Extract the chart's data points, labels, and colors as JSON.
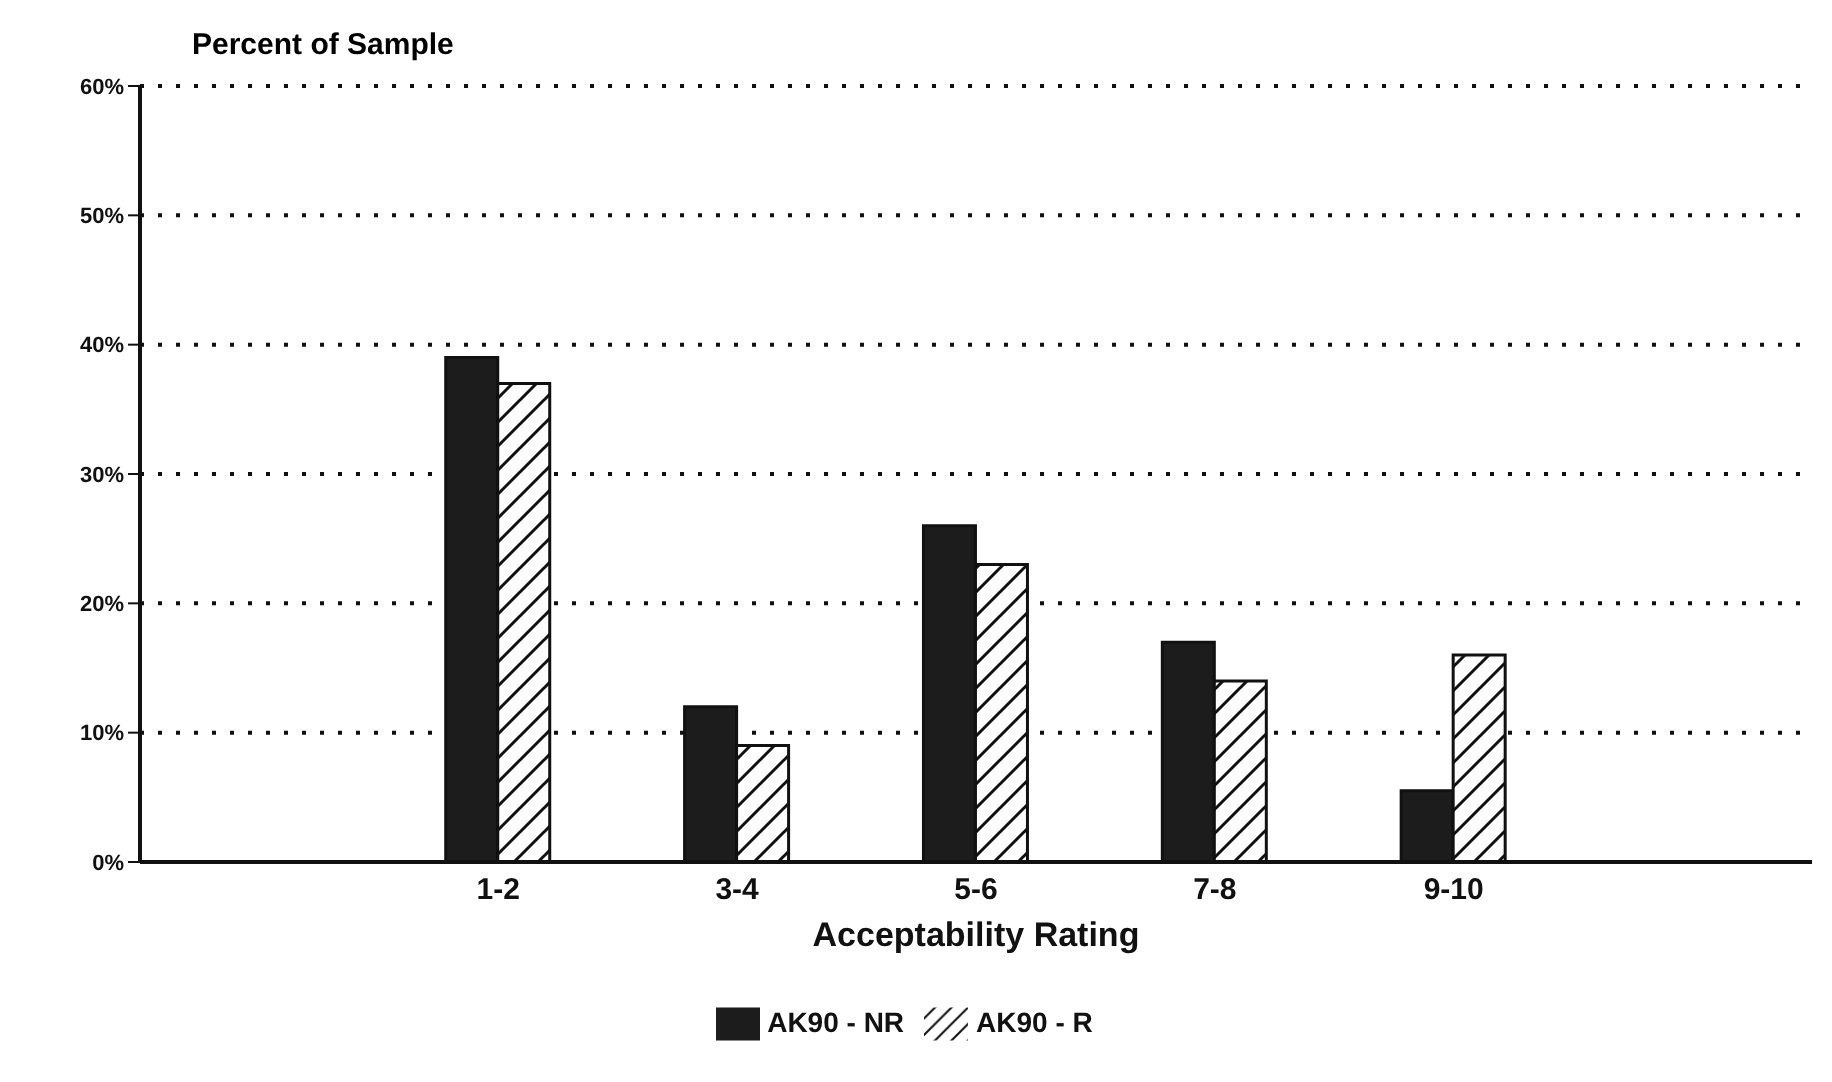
{
  "chart_data": {
    "type": "bar",
    "title": "Percent of Sample",
    "xlabel": "Acceptability Rating",
    "categories": [
      null,
      "1-2",
      "3-4",
      "5-6",
      "7-8",
      "9-10",
      null
    ],
    "series": [
      {
        "name": "AK90 - NR",
        "color": "#1c1c1c",
        "values": [
          0,
          39,
          12,
          26,
          17,
          5.5,
          0
        ]
      },
      {
        "name": "AK90 - R",
        "color": "#111111",
        "values": [
          0,
          37,
          9,
          23,
          14,
          16,
          0
        ]
      }
    ],
    "ylim": [
      0,
      60
    ],
    "yticks": [
      {
        "value": 0,
        "label": "0%"
      },
      {
        "value": 10,
        "label": "10%"
      },
      {
        "value": 20,
        "label": "20%"
      },
      {
        "value": 30,
        "label": "30%"
      },
      {
        "value": 40,
        "label": "40%"
      },
      {
        "value": 50,
        "label": "50%"
      },
      {
        "value": 60,
        "label": "60%"
      }
    ],
    "grid": "y",
    "legend": "bottom"
  }
}
